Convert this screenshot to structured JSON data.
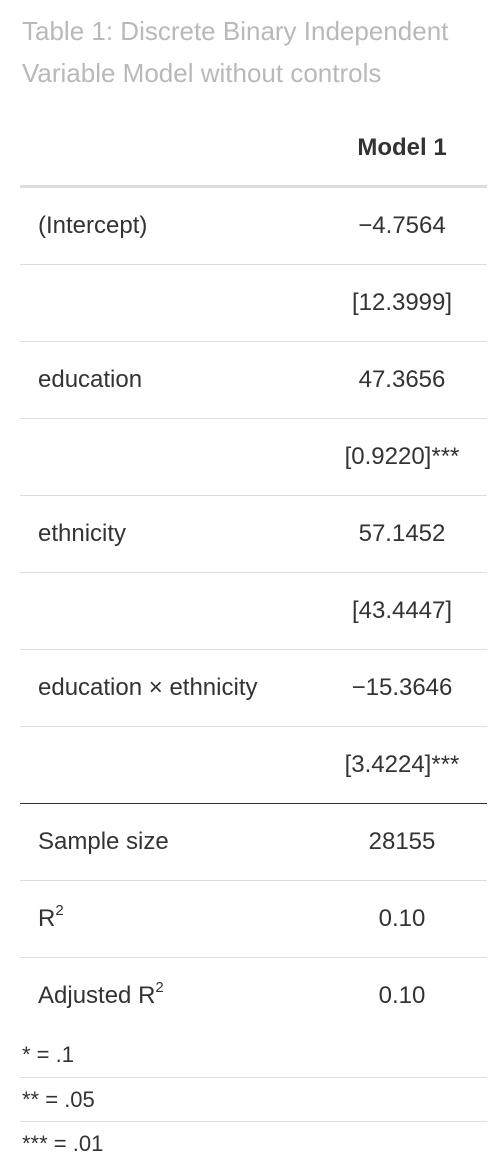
{
  "caption": "Table 1: Discrete Binary Independent Variable Model without controls",
  "table": {
    "column_header": "Model 1",
    "rows": [
      {
        "label": "(Intercept)",
        "value": "−4.7564"
      },
      {
        "label": "",
        "value": "[12.3999]"
      },
      {
        "label": "education",
        "value": "47.3656"
      },
      {
        "label": "",
        "value": "[0.9220]***"
      },
      {
        "label": "ethnicity",
        "value": "57.1452"
      },
      {
        "label": "",
        "value": "[43.4447]"
      },
      {
        "label": "education × ethnicity",
        "value": "−15.3646"
      },
      {
        "label": "",
        "value": "[3.4224]***"
      }
    ],
    "stats": [
      {
        "label": "Sample size",
        "sup": "",
        "value": "28155"
      },
      {
        "label": "R",
        "sup": "2",
        "value": "0.10"
      },
      {
        "label": "Adjusted R",
        "sup": "2",
        "value": "0.10"
      }
    ]
  },
  "footnotes": [
    "* = .1",
    "** = .05",
    "*** = .01"
  ]
}
